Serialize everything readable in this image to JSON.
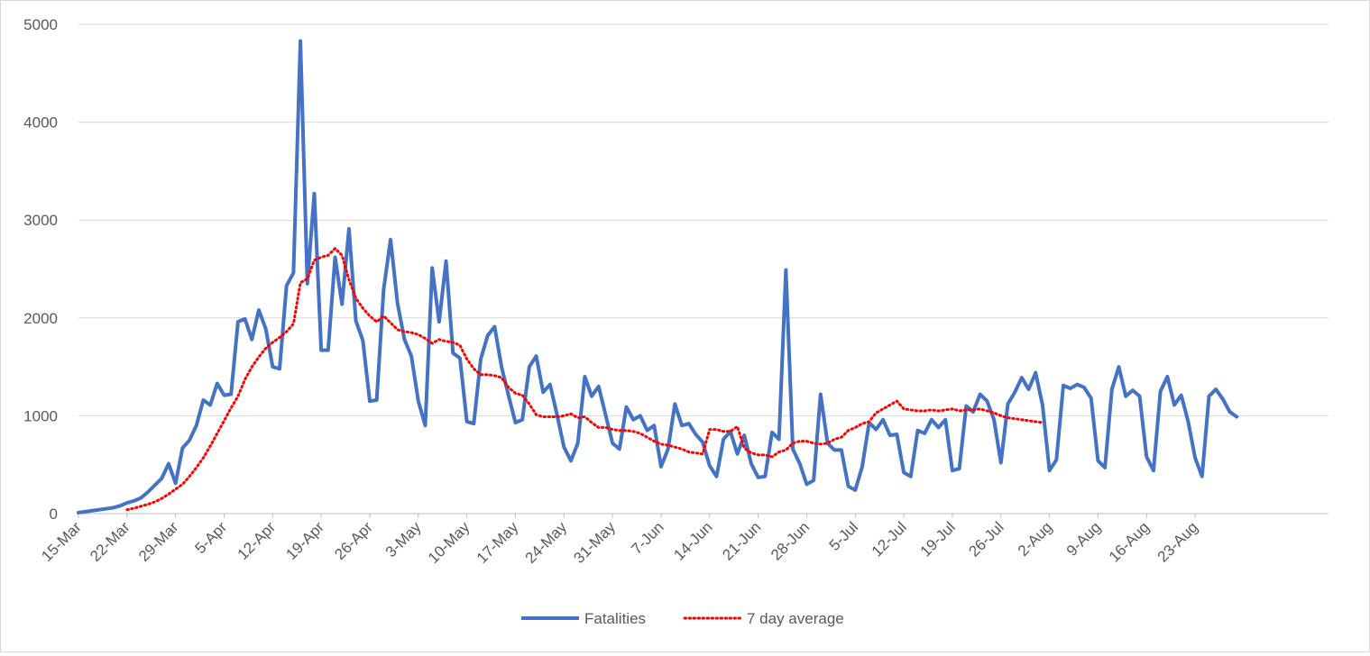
{
  "chart_data": {
    "type": "line",
    "title": "",
    "xlabel": "",
    "ylabel": "",
    "ylim": [
      0,
      5000
    ],
    "yticks": [
      0,
      1000,
      2000,
      3000,
      4000,
      5000
    ],
    "grid": "horizontal",
    "legend_position": "bottom",
    "x_start_date": "15-Mar",
    "x_tick_labels": [
      "15-Mar",
      "22-Mar",
      "29-Mar",
      "5-Apr",
      "12-Apr",
      "19-Apr",
      "26-Apr",
      "3-May",
      "10-May",
      "17-May",
      "24-May",
      "31-May",
      "7-Jun",
      "14-Jun",
      "21-Jun",
      "28-Jun",
      "5-Jul",
      "12-Jul",
      "19-Jul",
      "26-Jul",
      "2-Aug",
      "9-Aug",
      "16-Aug",
      "23-Aug"
    ],
    "series": [
      {
        "name": "Fatalities",
        "color": "#4472c4",
        "style": "solid",
        "values": [
          10,
          20,
          30,
          40,
          50,
          60,
          80,
          110,
          130,
          160,
          220,
          290,
          360,
          510,
          310,
          670,
          750,
          900,
          1160,
          1110,
          1330,
          1210,
          1220,
          1960,
          1990,
          1780,
          2080,
          1890,
          1500,
          1480,
          2330,
          2460,
          4830,
          2350,
          3270,
          1670,
          1670,
          2620,
          2140,
          2910,
          1970,
          1770,
          1150,
          1160,
          2290,
          2800,
          2150,
          1780,
          1610,
          1150,
          900,
          2510,
          1960,
          2580,
          1640,
          1590,
          940,
          920,
          1580,
          1820,
          1910,
          1500,
          1210,
          930,
          960,
          1500,
          1610,
          1240,
          1320,
          1010,
          680,
          540,
          720,
          1400,
          1200,
          1300,
          1010,
          720,
          660,
          1090,
          960,
          1000,
          850,
          900,
          480,
          660,
          1120,
          900,
          920,
          810,
          730,
          490,
          380,
          760,
          840,
          610,
          800,
          510,
          370,
          380,
          830,
          760,
          2490,
          660,
          510,
          300,
          340,
          1220,
          720,
          650,
          650,
          280,
          240,
          480,
          930,
          860,
          960,
          800,
          810,
          420,
          380,
          850,
          820,
          960,
          880,
          960,
          440,
          460,
          1100,
          1040,
          1220,
          1150,
          960,
          520,
          1120,
          1240,
          1390,
          1270,
          1440,
          1110,
          440,
          550,
          1310,
          1280,
          1320,
          1290,
          1180,
          540,
          470,
          1270,
          1500,
          1200,
          1260,
          1200,
          580,
          440,
          1250,
          1400,
          1110,
          1210,
          940,
          570,
          380,
          1200,
          1270,
          1170,
          1040,
          990
        ]
      },
      {
        "name": "7 day average",
        "color": "#ff0000",
        "style": "dotted",
        "start_day": 7,
        "values": [
          40,
          55,
          75,
          95,
          120,
          155,
          200,
          250,
          300,
          380,
          470,
          570,
          690,
          820,
          950,
          1080,
          1200,
          1370,
          1500,
          1600,
          1690,
          1750,
          1800,
          1860,
          1940,
          2360,
          2400,
          2590,
          2620,
          2640,
          2710,
          2640,
          2390,
          2200,
          2100,
          2020,
          1960,
          2020,
          1950,
          1880,
          1860,
          1850,
          1830,
          1790,
          1740,
          1780,
          1760,
          1750,
          1720,
          1580,
          1480,
          1420,
          1420,
          1410,
          1390,
          1290,
          1230,
          1210,
          1120,
          1010,
          990,
          990,
          990,
          1000,
          1020,
          980,
          990,
          930,
          880,
          880,
          860,
          850,
          850,
          840,
          820,
          780,
          740,
          710,
          700,
          680,
          660,
          630,
          620,
          610,
          860,
          860,
          840,
          840,
          890,
          670,
          620,
          600,
          600,
          580,
          630,
          650,
          720,
          740,
          740,
          720,
          710,
          720,
          760,
          780,
          850,
          880,
          920,
          940,
          1030,
          1070,
          1110,
          1150,
          1070,
          1060,
          1050,
          1050,
          1060,
          1050,
          1060,
          1070,
          1050,
          1060,
          1060,
          1070,
          1050,
          1030,
          1000,
          980,
          970,
          960,
          950,
          940,
          930
        ]
      }
    ]
  }
}
